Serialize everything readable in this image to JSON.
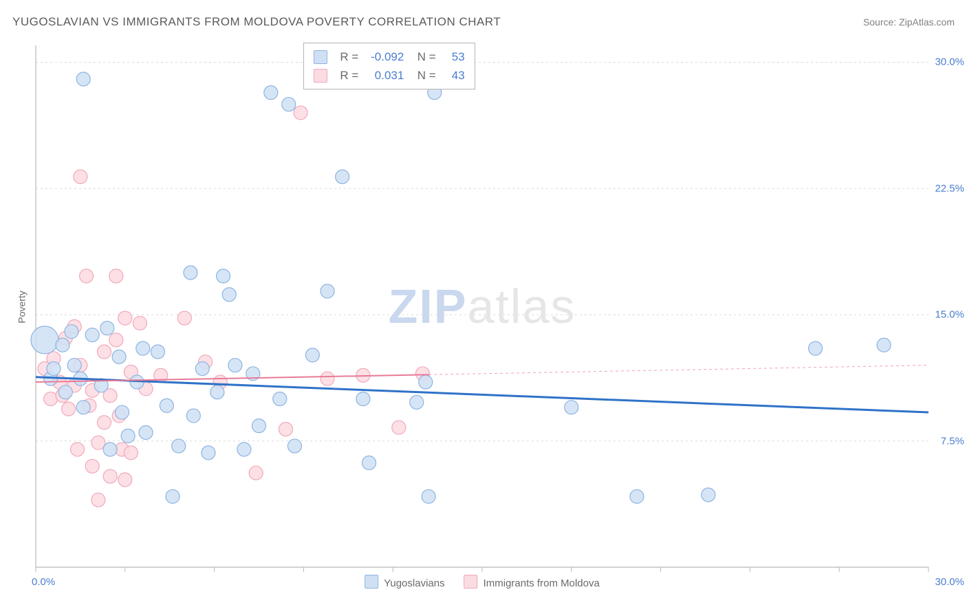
{
  "title": "YUGOSLAVIAN VS IMMIGRANTS FROM MOLDOVA POVERTY CORRELATION CHART",
  "source_label": "Source: ZipAtlas.com",
  "ylabel": "Poverty",
  "watermark": {
    "zip": "ZIP",
    "atlas": "atlas"
  },
  "chart": {
    "type": "scatter",
    "background_color": "#ffffff",
    "grid_color": "#d9d9d9",
    "axis_color": "#b8b8b8",
    "xlim": [
      0,
      30
    ],
    "ylim": [
      0,
      31
    ],
    "xtick_positions": [
      0,
      3,
      6,
      9,
      12,
      15,
      18,
      21,
      24,
      27,
      30
    ],
    "xtick_labels": {
      "min": "0.0%",
      "max": "30.0%"
    },
    "ytick_positions": [
      7.5,
      15.0,
      22.5,
      30.0
    ],
    "ytick_labels": [
      "7.5%",
      "15.0%",
      "22.5%",
      "30.0%"
    ],
    "tick_label_color": "#4a7ecf",
    "tick_label_fontsize": 15,
    "marker_radius": 10,
    "marker_radius_large": 20,
    "series": [
      {
        "name": "Yugoslavians",
        "fill": "#cfe0f5",
        "stroke": "#8cb3e0",
        "R": "-0.092",
        "N": "53",
        "trend": {
          "y_at_x0": 11.3,
          "y_at_x30": 9.2,
          "solid_extent_x": 30,
          "color": "#2f72c7",
          "width": 3
        },
        "points": [
          {
            "x": 0.3,
            "y": 13.5,
            "r": 20
          },
          {
            "x": 0.5,
            "y": 11.2
          },
          {
            "x": 0.6,
            "y": 11.8
          },
          {
            "x": 0.9,
            "y": 13.2
          },
          {
            "x": 1.0,
            "y": 10.4
          },
          {
            "x": 1.2,
            "y": 14.0
          },
          {
            "x": 1.3,
            "y": 12.0
          },
          {
            "x": 1.5,
            "y": 11.2
          },
          {
            "x": 1.6,
            "y": 9.5
          },
          {
            "x": 1.6,
            "y": 29.0
          },
          {
            "x": 1.9,
            "y": 13.8
          },
          {
            "x": 2.2,
            "y": 10.8
          },
          {
            "x": 2.4,
            "y": 14.2
          },
          {
            "x": 2.5,
            "y": 7.0
          },
          {
            "x": 2.8,
            "y": 12.5
          },
          {
            "x": 2.9,
            "y": 9.2
          },
          {
            "x": 3.1,
            "y": 7.8
          },
          {
            "x": 3.4,
            "y": 11.0
          },
          {
            "x": 3.6,
            "y": 13.0
          },
          {
            "x": 3.7,
            "y": 8.0
          },
          {
            "x": 4.1,
            "y": 12.8
          },
          {
            "x": 4.4,
            "y": 9.6
          },
          {
            "x": 4.6,
            "y": 4.2
          },
          {
            "x": 4.8,
            "y": 7.2
          },
          {
            "x": 5.2,
            "y": 17.5
          },
          {
            "x": 5.3,
            "y": 9.0
          },
          {
            "x": 5.6,
            "y": 11.8
          },
          {
            "x": 5.8,
            "y": 6.8
          },
          {
            "x": 6.1,
            "y": 10.4
          },
          {
            "x": 6.3,
            "y": 17.3
          },
          {
            "x": 6.5,
            "y": 16.2
          },
          {
            "x": 6.7,
            "y": 12.0
          },
          {
            "x": 7.0,
            "y": 7.0
          },
          {
            "x": 7.3,
            "y": 11.5
          },
          {
            "x": 7.5,
            "y": 8.4
          },
          {
            "x": 7.9,
            "y": 28.2
          },
          {
            "x": 8.2,
            "y": 10.0
          },
          {
            "x": 8.5,
            "y": 27.5
          },
          {
            "x": 8.7,
            "y": 7.2
          },
          {
            "x": 9.3,
            "y": 12.6
          },
          {
            "x": 9.8,
            "y": 16.4
          },
          {
            "x": 10.3,
            "y": 23.2
          },
          {
            "x": 11.0,
            "y": 10.0
          },
          {
            "x": 11.2,
            "y": 6.2
          },
          {
            "x": 12.8,
            "y": 9.8
          },
          {
            "x": 13.1,
            "y": 11.0
          },
          {
            "x": 13.2,
            "y": 4.2
          },
          {
            "x": 13.4,
            "y": 28.2
          },
          {
            "x": 18.0,
            "y": 9.5
          },
          {
            "x": 20.2,
            "y": 4.2
          },
          {
            "x": 22.6,
            "y": 4.3
          },
          {
            "x": 26.2,
            "y": 13.0
          },
          {
            "x": 28.5,
            "y": 13.2
          }
        ]
      },
      {
        "name": "Immigrants from Moldova",
        "fill": "#fbdbe2",
        "stroke": "#f1a8b8",
        "R": "0.031",
        "N": "43",
        "trend": {
          "y_at_x0": 11.0,
          "y_at_x30": 12.0,
          "solid_extent_x": 13.2,
          "color": "#e87a96",
          "width": 2
        },
        "points": [
          {
            "x": 0.3,
            "y": 11.8
          },
          {
            "x": 0.5,
            "y": 10.0
          },
          {
            "x": 0.6,
            "y": 12.4
          },
          {
            "x": 0.8,
            "y": 11.0
          },
          {
            "x": 0.9,
            "y": 10.2
          },
          {
            "x": 1.0,
            "y": 13.6
          },
          {
            "x": 1.1,
            "y": 9.4
          },
          {
            "x": 1.3,
            "y": 10.8
          },
          {
            "x": 1.3,
            "y": 14.3
          },
          {
            "x": 1.4,
            "y": 7.0
          },
          {
            "x": 1.5,
            "y": 12.0
          },
          {
            "x": 1.5,
            "y": 23.2
          },
          {
            "x": 1.7,
            "y": 17.3
          },
          {
            "x": 1.8,
            "y": 9.6
          },
          {
            "x": 1.9,
            "y": 10.5
          },
          {
            "x": 1.9,
            "y": 6.0
          },
          {
            "x": 2.1,
            "y": 7.4
          },
          {
            "x": 2.1,
            "y": 4.0
          },
          {
            "x": 2.3,
            "y": 12.8
          },
          {
            "x": 2.3,
            "y": 8.6
          },
          {
            "x": 2.5,
            "y": 10.2
          },
          {
            "x": 2.5,
            "y": 5.4
          },
          {
            "x": 2.7,
            "y": 17.3
          },
          {
            "x": 2.7,
            "y": 13.5
          },
          {
            "x": 2.8,
            "y": 9.0
          },
          {
            "x": 2.9,
            "y": 7.0
          },
          {
            "x": 3.0,
            "y": 14.8
          },
          {
            "x": 3.0,
            "y": 5.2
          },
          {
            "x": 3.2,
            "y": 11.6
          },
          {
            "x": 3.2,
            "y": 6.8
          },
          {
            "x": 3.5,
            "y": 14.5
          },
          {
            "x": 3.7,
            "y": 10.6
          },
          {
            "x": 4.2,
            "y": 11.4
          },
          {
            "x": 5.0,
            "y": 14.8
          },
          {
            "x": 5.7,
            "y": 12.2
          },
          {
            "x": 6.2,
            "y": 11.0
          },
          {
            "x": 7.4,
            "y": 5.6
          },
          {
            "x": 8.4,
            "y": 8.2
          },
          {
            "x": 8.9,
            "y": 27.0
          },
          {
            "x": 9.8,
            "y": 11.2
          },
          {
            "x": 11.0,
            "y": 11.4
          },
          {
            "x": 12.2,
            "y": 8.3
          },
          {
            "x": 13.0,
            "y": 11.5
          }
        ]
      }
    ],
    "legend_bottom_labels": [
      "Yugoslavians",
      "Immigrants from Moldova"
    ],
    "legend_box": {
      "r_label": "R =",
      "n_label": "N ="
    }
  }
}
